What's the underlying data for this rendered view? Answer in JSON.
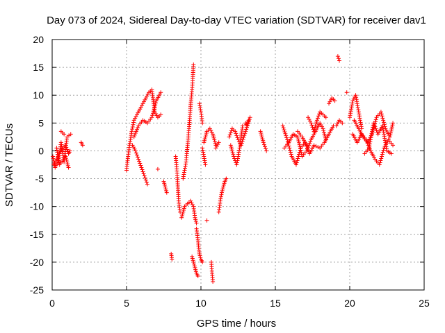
{
  "chart_data": {
    "type": "scatter",
    "title": "Day 073 of 2024, Sidereal Day-to-day VTEC variation (SDTVAR) for receiver dav1",
    "xlabel": "GPS time / hours",
    "ylabel": "SDTVAR / TECUs",
    "xlim": [
      0,
      25
    ],
    "ylim": [
      -25,
      20
    ],
    "xticks": [
      0,
      5,
      10,
      15,
      20,
      25
    ],
    "yticks": [
      20,
      15,
      10,
      5,
      0,
      -5,
      -10,
      -15,
      -20,
      -25
    ],
    "grid": true,
    "marker": "+",
    "color": "#ff0000",
    "series": [
      {
        "name": "SDTVAR",
        "segments": [
          {
            "x": [
              0.1,
              0.3,
              0.5,
              0.7,
              0.9,
              1.1,
              1.2
            ],
            "y": [
              -2.5,
              -1.5,
              -0.5,
              0.5,
              1.0,
              -0.5,
              0.0
            ]
          },
          {
            "x": [
              0.05,
              0.2,
              0.4,
              0.6,
              0.8,
              1.0,
              1.25
            ],
            "y": [
              -1.0,
              -3.0,
              -2.0,
              1.5,
              -2.0,
              2.5,
              3.0
            ]
          },
          {
            "x": [
              0.6,
              0.7,
              0.8
            ],
            "y": [
              3.5,
              3.2,
              3.0
            ]
          },
          {
            "x": [
              0.3,
              0.5,
              0.9,
              1.1
            ],
            "y": [
              0.5,
              -2.5,
              -1.0,
              -3.0
            ]
          },
          {
            "x": [
              1.95,
              2.05
            ],
            "y": [
              1.5,
              1.0
            ]
          },
          {
            "x": [
              5.0,
              5.1,
              5.2,
              5.35,
              5.5,
              5.7,
              5.9,
              6.1,
              6.3,
              6.5,
              6.7,
              6.9,
              7.1,
              7.3
            ],
            "y": [
              -3.5,
              -1.0,
              1.0,
              3.5,
              5.5,
              6.5,
              7.5,
              8.5,
              9.5,
              10.5,
              11.0,
              7.0,
              6.0,
              6.5
            ]
          },
          {
            "x": [
              5.4,
              5.6,
              5.8,
              6.0,
              6.2,
              6.4
            ],
            "y": [
              1.0,
              0.0,
              -1.5,
              -3.0,
              -4.5,
              -6.0
            ]
          },
          {
            "x": [
              5.5,
              5.8,
              6.1,
              6.4,
              6.7,
              7.0,
              7.3
            ],
            "y": [
              2.5,
              4.5,
              5.5,
              5.0,
              6.0,
              9.0,
              10.5
            ]
          },
          {
            "x": [
              7.1
            ],
            "y": [
              -3.3
            ]
          },
          {
            "x": [
              7.5,
              7.6,
              7.7
            ],
            "y": [
              -5.5,
              -6.5,
              -7.5
            ]
          },
          {
            "x": [
              8.0,
              8.05
            ],
            "y": [
              -18.5,
              -19.5
            ]
          },
          {
            "x": [
              8.3,
              8.4,
              8.5,
              8.6
            ],
            "y": [
              -1.0,
              -4.0,
              -9.0,
              -11.0
            ]
          },
          {
            "x": [
              8.7,
              8.9,
              9.1,
              9.3,
              9.5,
              9.6,
              9.7
            ],
            "y": [
              -12.0,
              -10.0,
              -9.5,
              -9.0,
              -10.0,
              -12.0,
              -13.0
            ]
          },
          {
            "x": [
              8.8,
              9.0,
              9.1,
              9.2,
              9.3,
              9.4,
              9.45,
              9.5
            ],
            "y": [
              -5.0,
              -2.0,
              1.0,
              4.0,
              8.0,
              11.0,
              13.0,
              15.5
            ]
          },
          {
            "x": [
              9.4,
              9.5,
              9.6,
              9.7,
              9.8
            ],
            "y": [
              -19.0,
              -20.0,
              -21.0,
              -22.0,
              -22.5
            ]
          },
          {
            "x": [
              9.7,
              9.8,
              9.85,
              9.9,
              10.0,
              10.1
            ],
            "y": [
              -14.0,
              -16.0,
              -17.5,
              -18.5,
              -19.5,
              -20.0
            ]
          },
          {
            "x": [
              9.9,
              10.0,
              10.1
            ],
            "y": [
              8.5,
              7.0,
              5.0
            ]
          },
          {
            "x": [
              10.2,
              10.4,
              10.6,
              10.8,
              11.0
            ],
            "y": [
              1.5,
              3.5,
              4.0,
              3.0,
              1.0
            ]
          },
          {
            "x": [
              10.1,
              10.3
            ],
            "y": [
              0.5,
              -2.5
            ]
          },
          {
            "x": [
              10.4
            ],
            "y": [
              -12.5
            ]
          },
          {
            "x": [
              10.7,
              10.75,
              10.8
            ],
            "y": [
              -20.0,
              -22.0,
              -23.5
            ]
          },
          {
            "x": [
              11.2,
              11.3,
              11.4,
              11.5,
              11.6,
              11.7
            ],
            "y": [
              -11.0,
              -9.0,
              -7.5,
              -6.5,
              -5.5,
              -5.0
            ]
          },
          {
            "x": [
              11.0,
              11.2
            ],
            "y": [
              0.5,
              1.5
            ]
          },
          {
            "x": [
              11.9,
              12.1,
              12.3,
              12.5,
              12.7,
              13.0,
              13.3
            ],
            "y": [
              2.5,
              4.0,
              3.5,
              2.0,
              1.0,
              3.5,
              6.0
            ]
          },
          {
            "x": [
              12.0,
              12.2,
              12.4,
              12.6,
              12.8
            ],
            "y": [
              1.0,
              -1.0,
              -2.5,
              0.5,
              4.5
            ]
          },
          {
            "x": [
              13.0,
              13.1,
              13.2
            ],
            "y": [
              5.0,
              4.5,
              5.5
            ]
          },
          {
            "x": [
              14.0,
              14.2,
              14.4
            ],
            "y": [
              3.5,
              1.5,
              0.0
            ]
          },
          {
            "x": [
              15.5,
              15.8,
              16.1,
              16.4,
              16.7,
              17.0,
              17.3,
              17.6,
              18.0,
              18.3,
              18.6,
              18.9
            ],
            "y": [
              4.5,
              2.0,
              -1.0,
              -2.5,
              0.5,
              1.5,
              -0.5,
              1.0,
              0.5,
              1.5,
              3.0,
              4.5
            ]
          },
          {
            "x": [
              15.6,
              15.9,
              16.2,
              16.5,
              16.8,
              17.1,
              17.4,
              17.7,
              18.0,
              18.2,
              18.4
            ],
            "y": [
              0.5,
              1.5,
              3.0,
              2.5,
              -1.0,
              0.0,
              2.0,
              3.5,
              5.0,
              4.0,
              2.0
            ]
          },
          {
            "x": [
              16.5,
              16.8,
              17.1
            ],
            "y": [
              3.5,
              2.5,
              1.0
            ]
          },
          {
            "x": [
              17.2,
              17.4,
              17.6,
              17.8,
              18.0,
              18.2,
              18.4
            ],
            "y": [
              6.0,
              5.0,
              3.5,
              5.5,
              7.0,
              6.5,
              6.0
            ]
          },
          {
            "x": [
              18.6,
              18.8,
              19.0
            ],
            "y": [
              8.5,
              9.5,
              9.0
            ]
          },
          {
            "x": [
              19.2,
              19.3
            ],
            "y": [
              17.0,
              16.2
            ]
          },
          {
            "x": [
              19.1,
              19.3,
              19.5
            ],
            "y": [
              4.5,
              5.5,
              5.0
            ]
          },
          {
            "x": [
              19.8
            ],
            "y": [
              10.5
            ]
          },
          {
            "x": [
              20.0,
              20.2,
              20.4,
              20.6,
              20.8
            ],
            "y": [
              6.0,
              9.0,
              10.0,
              7.0,
              4.0
            ]
          },
          {
            "x": [
              20.2,
              20.5,
              20.8,
              21.1,
              21.4,
              21.7,
              22.0,
              22.3,
              22.6,
              22.9
            ],
            "y": [
              3.0,
              1.5,
              3.0,
              2.0,
              0.0,
              -1.5,
              -2.5,
              0.5,
              2.0,
              1.0
            ]
          },
          {
            "x": [
              20.3,
              20.6,
              20.9,
              21.2,
              21.5,
              21.8,
              22.1,
              22.4,
              22.7,
              22.9
            ],
            "y": [
              5.5,
              4.0,
              2.5,
              1.5,
              3.0,
              6.0,
              7.0,
              4.0,
              2.5,
              5.0
            ]
          },
          {
            "x": [
              21.0,
              21.3,
              21.6,
              21.9,
              22.2,
              22.5,
              22.8
            ],
            "y": [
              -0.5,
              0.5,
              5.0,
              3.0,
              4.5,
              0.0,
              -0.5
            ]
          }
        ]
      }
    ]
  }
}
